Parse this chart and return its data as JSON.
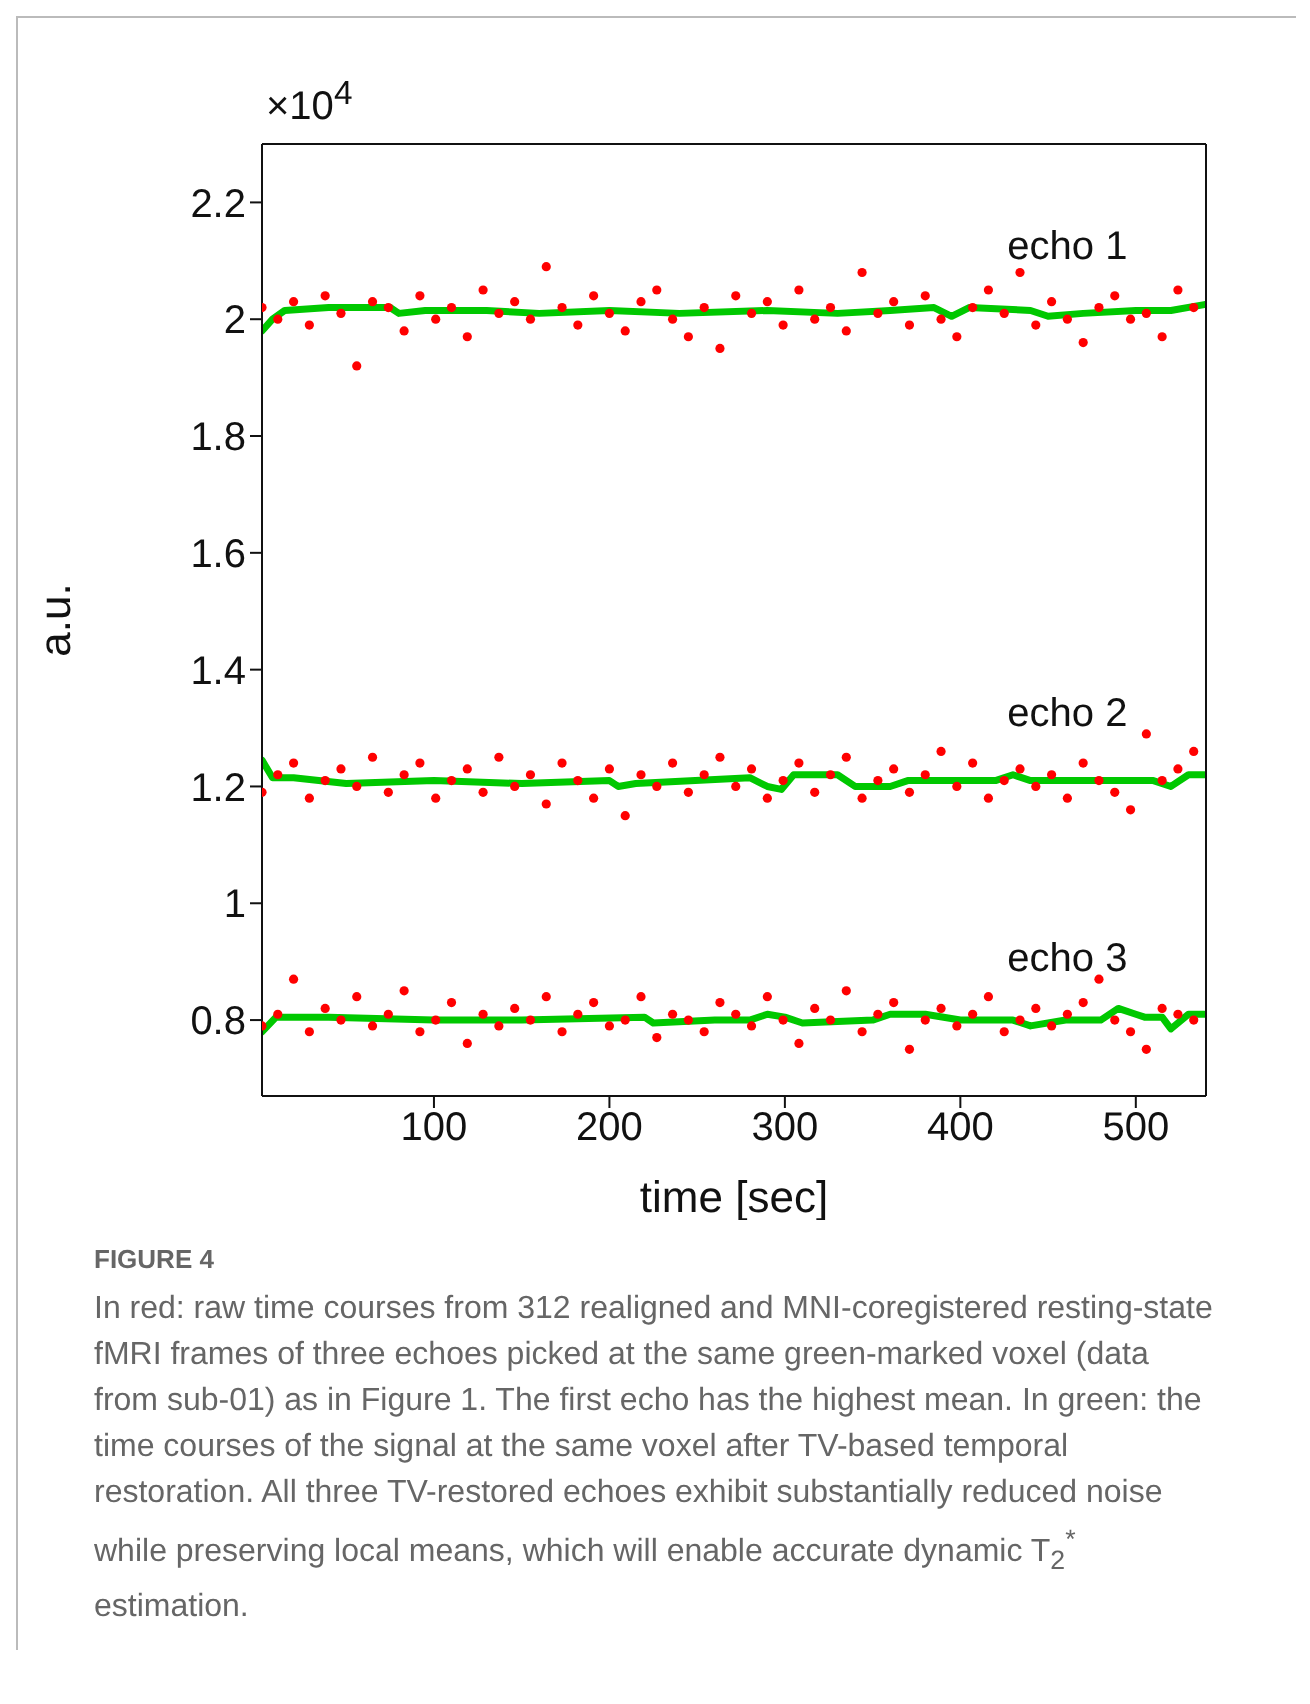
{
  "chart_data": {
    "type": "scatter",
    "title": "FIGURE 4",
    "xlabel": "time [sec]",
    "ylabel": "a.u.",
    "xlim": [
      2,
      540
    ],
    "xticks": [
      100,
      200,
      300,
      400,
      500
    ],
    "ylim": [
      0.67,
      2.3
    ],
    "yticks": [
      0.8,
      1,
      1.2,
      1.4,
      1.6,
      1.8,
      2,
      2.2
    ],
    "annotations": [
      "×10$^{4}$",
      "In red: raw time courses from 312 realigned and MNI-coregistered resting-state fMRI frames of three echoes picked at the same green-marked voxel (data from sub-01) as in Figure 1. The first echo has the highest mean. In green: the time courses of the signal at the same voxel after TV-based temporal restoration. All three TV-restored echoes exhibit substantially reduced noise while preserving local means, which will enable accurate dynamic T$_{2}$$^{*}$ estimation."
    ],
    "x": [
      2,
      11,
      20,
      29,
      38,
      47,
      56,
      65,
      74,
      83,
      92,
      101,
      110,
      119,
      128,
      137,
      146,
      155,
      164,
      173,
      182,
      191,
      200,
      209,
      218,
      227,
      236,
      245,
      254,
      263,
      272,
      281,
      290,
      299,
      308,
      317,
      326,
      335,
      344,
      353,
      362,
      371,
      380,
      389,
      398,
      407,
      416,
      425,
      434,
      443,
      452,
      461,
      470,
      479,
      488,
      497,
      506,
      515,
      524,
      533
    ],
    "series": [
      {
        "name": "echo 1",
        "marker": "circle",
        "color": "#ff0000",
        "values": [
          2.02,
          2.0,
          2.03,
          1.99,
          2.04,
          2.01,
          1.92,
          2.03,
          2.02,
          1.98,
          2.04,
          2.0,
          2.02,
          1.97,
          2.05,
          2.01,
          2.03,
          2.0,
          2.09,
          2.02,
          1.99,
          2.04,
          2.01,
          1.98,
          2.03,
          2.05,
          2.0,
          1.97,
          2.02,
          1.95,
          2.04,
          2.01,
          2.03,
          1.99,
          2.05,
          2.0,
          2.02,
          1.98,
          2.08,
          2.01,
          2.03,
          1.99,
          2.04,
          2.0,
          1.97,
          2.02,
          2.05,
          2.01,
          2.08,
          1.99,
          2.03,
          2.0,
          1.96,
          2.02,
          2.04,
          2.0,
          2.01,
          1.97,
          2.05,
          2.02
        ]
      },
      {
        "name": "echo 2",
        "marker": "circle",
        "color": "#ff0000",
        "values": [
          1.19,
          1.22,
          1.24,
          1.18,
          1.21,
          1.23,
          1.2,
          1.25,
          1.19,
          1.22,
          1.24,
          1.18,
          1.21,
          1.23,
          1.19,
          1.25,
          1.2,
          1.22,
          1.17,
          1.24,
          1.21,
          1.18,
          1.23,
          1.15,
          1.22,
          1.2,
          1.24,
          1.19,
          1.22,
          1.25,
          1.2,
          1.23,
          1.18,
          1.21,
          1.24,
          1.19,
          1.22,
          1.25,
          1.18,
          1.21,
          1.23,
          1.19,
          1.22,
          1.26,
          1.2,
          1.24,
          1.18,
          1.21,
          1.23,
          1.2,
          1.22,
          1.18,
          1.24,
          1.21,
          1.19,
          1.16,
          1.29,
          1.21,
          1.23,
          1.26
        ]
      },
      {
        "name": "echo 3",
        "marker": "circle",
        "color": "#ff0000",
        "values": [
          0.79,
          0.81,
          0.87,
          0.78,
          0.82,
          0.8,
          0.84,
          0.79,
          0.81,
          0.85,
          0.78,
          0.8,
          0.83,
          0.76,
          0.81,
          0.79,
          0.82,
          0.8,
          0.84,
          0.78,
          0.81,
          0.83,
          0.79,
          0.8,
          0.84,
          0.77,
          0.81,
          0.8,
          0.78,
          0.83,
          0.81,
          0.79,
          0.84,
          0.8,
          0.76,
          0.82,
          0.8,
          0.85,
          0.78,
          0.81,
          0.83,
          0.75,
          0.8,
          0.82,
          0.79,
          0.81,
          0.84,
          0.78,
          0.8,
          0.82,
          0.79,
          0.81,
          0.83,
          0.87,
          0.8,
          0.78,
          0.75,
          0.82,
          0.81,
          0.8
        ]
      },
      {
        "type": "line",
        "marker": "none",
        "line_style": "solid",
        "color": "#00c800",
        "x": [
          2,
          8,
          15,
          40,
          75,
          80,
          95,
          130,
          160,
          200,
          240,
          290,
          330,
          360,
          385,
          395,
          405,
          440,
          450,
          470,
          500,
          520,
          539
        ],
        "values": [
          1.98,
          2.0,
          2.015,
          2.02,
          2.02,
          2.01,
          2.015,
          2.015,
          2.01,
          2.015,
          2.01,
          2.015,
          2.01,
          2.015,
          2.02,
          2.005,
          2.02,
          2.015,
          2.005,
          2.01,
          2.015,
          2.015,
          2.025
        ]
      },
      {
        "type": "line",
        "marker": "none",
        "line_style": "solid",
        "color": "#00c800",
        "x": [
          2,
          8,
          20,
          50,
          100,
          150,
          200,
          205,
          215,
          280,
          290,
          298,
          305,
          330,
          340,
          360,
          370,
          420,
          430,
          440,
          510,
          520,
          530,
          539
        ],
        "values": [
          1.245,
          1.215,
          1.215,
          1.205,
          1.21,
          1.205,
          1.21,
          1.2,
          1.205,
          1.215,
          1.2,
          1.195,
          1.22,
          1.22,
          1.2,
          1.2,
          1.21,
          1.21,
          1.22,
          1.21,
          1.21,
          1.2,
          1.22,
          1.22
        ]
      },
      {
        "type": "line",
        "marker": "none",
        "line_style": "solid",
        "color": "#00c800",
        "x": [
          2,
          10,
          40,
          100,
          150,
          220,
          225,
          260,
          280,
          290,
          300,
          310,
          350,
          360,
          380,
          400,
          430,
          440,
          460,
          480,
          490,
          500,
          505,
          515,
          520,
          530,
          539
        ],
        "values": [
          0.78,
          0.805,
          0.805,
          0.8,
          0.8,
          0.805,
          0.795,
          0.8,
          0.8,
          0.81,
          0.805,
          0.795,
          0.8,
          0.81,
          0.81,
          0.8,
          0.8,
          0.79,
          0.8,
          0.8,
          0.82,
          0.81,
          0.805,
          0.805,
          0.785,
          0.81,
          0.81
        ]
      }
    ]
  }
}
